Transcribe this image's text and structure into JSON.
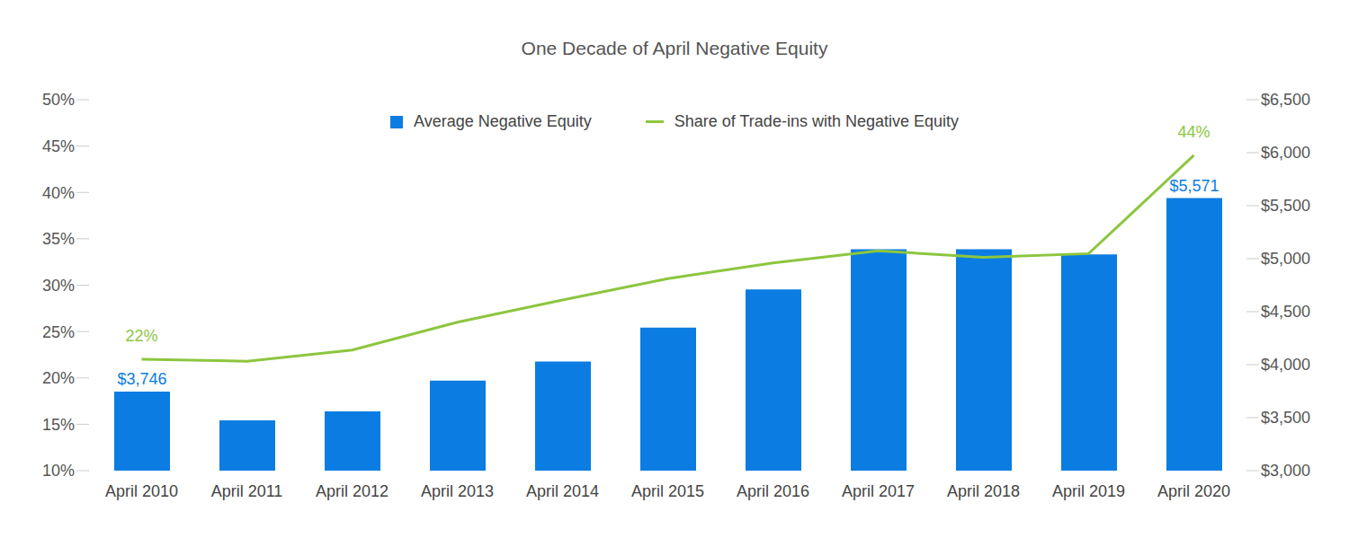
{
  "chart_data": {
    "type": "bar",
    "title": "One Decade of April Negative Equity",
    "categories": [
      "April 2010",
      "April 2011",
      "April 2012",
      "April 2013",
      "April 2014",
      "April 2015",
      "April 2016",
      "April 2017",
      "April 2018",
      "April 2019",
      "April 2020"
    ],
    "series": [
      {
        "name": "Average Negative Equity",
        "type": "bar",
        "color": "#0b7de2",
        "axis": "y2",
        "values": [
          3746,
          3475,
          3560,
          3850,
          4030,
          4350,
          4710,
          5090,
          5090,
          5040,
          5571
        ],
        "value_labels": [
          "$3,746",
          null,
          null,
          null,
          null,
          null,
          null,
          null,
          null,
          null,
          "$5,571"
        ]
      },
      {
        "name": "Share of Trade-ins with Negative Equity",
        "type": "line",
        "color": "#8cc63f",
        "values": [
          22,
          21.8,
          23,
          26,
          28.4,
          30.7,
          32.4,
          33.7,
          33,
          33.4,
          44
        ],
        "value_labels": [
          "22%",
          null,
          null,
          null,
          null,
          null,
          null,
          null,
          null,
          null,
          "44%"
        ]
      }
    ],
    "ylim": [
      10,
      50
    ],
    "yticks": [
      {
        "value": 10,
        "label": "10%"
      },
      {
        "value": 15,
        "label": "15%"
      },
      {
        "value": 20,
        "label": "20%"
      },
      {
        "value": 25,
        "label": "25%"
      },
      {
        "value": 30,
        "label": "30%"
      },
      {
        "value": 35,
        "label": "35%"
      },
      {
        "value": 40,
        "label": "40%"
      },
      {
        "value": 45,
        "label": "45%"
      },
      {
        "value": 50,
        "label": "50%"
      }
    ],
    "y2lim": [
      3000,
      6500
    ],
    "y2ticks": [
      {
        "value": 3000,
        "label": "$3,000"
      },
      {
        "value": 3500,
        "label": "$3,500"
      },
      {
        "value": 4000,
        "label": "$4,000"
      },
      {
        "value": 4500,
        "label": "$4,500"
      },
      {
        "value": 5000,
        "label": "$5,000"
      },
      {
        "value": 5500,
        "label": "$5,500"
      },
      {
        "value": 6000,
        "label": "$6,000"
      },
      {
        "value": 6500,
        "label": "$6,500"
      }
    ],
    "grid": false,
    "legend": "top",
    "data_labels": true
  }
}
